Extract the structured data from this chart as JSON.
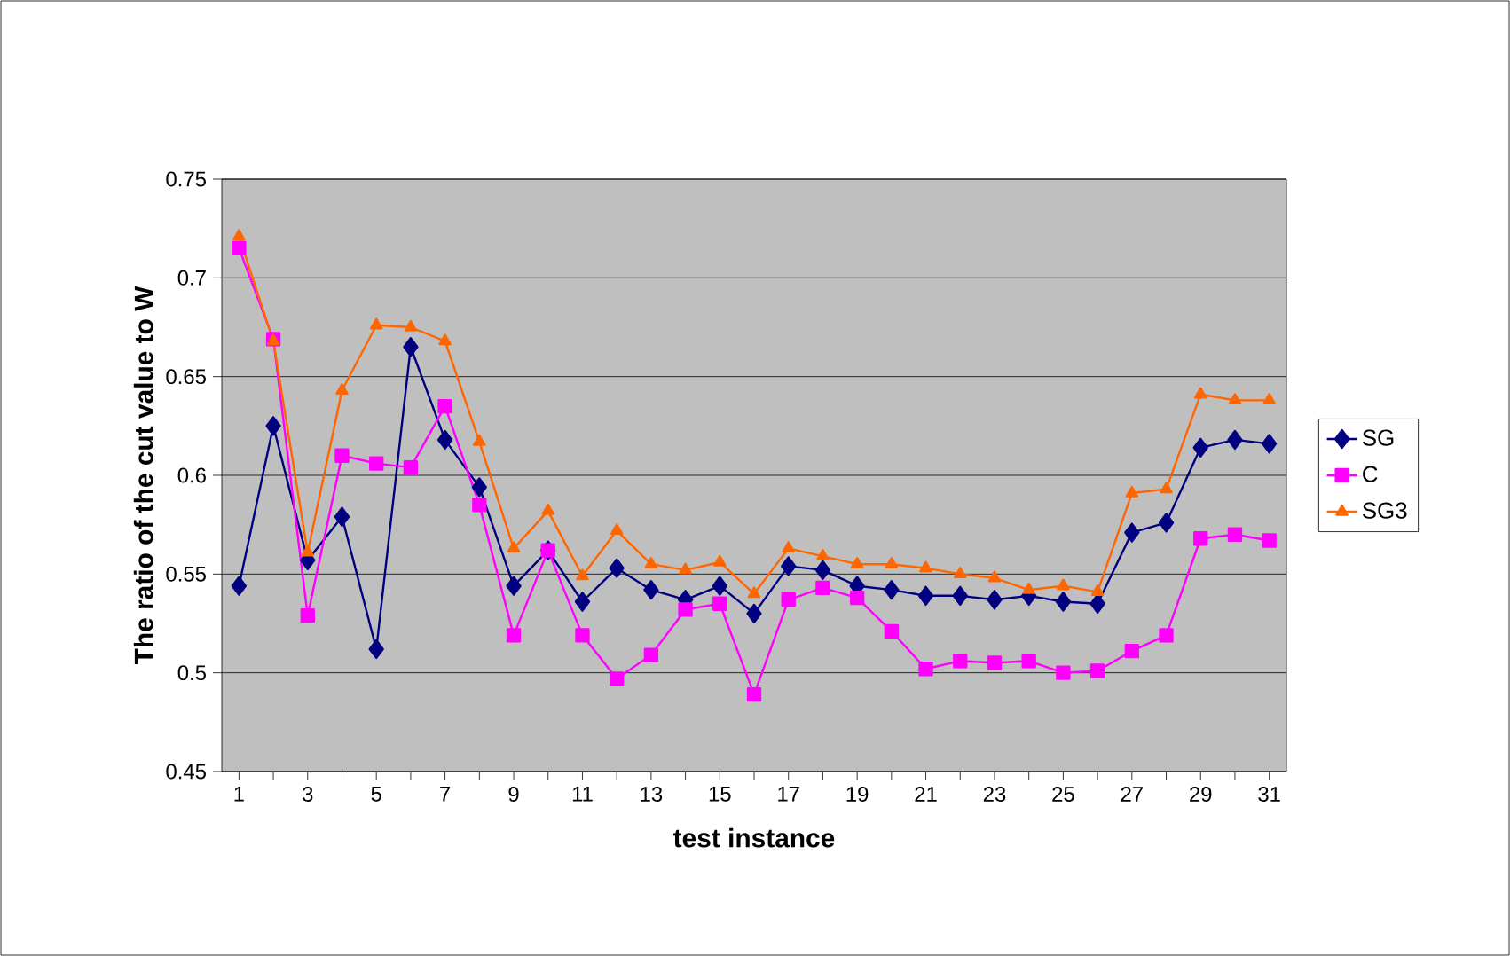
{
  "chart_data": {
    "type": "line",
    "xlabel": "test instance",
    "ylabel": "The ratio of the cut value to W",
    "categories": [
      "1",
      null,
      "3",
      null,
      "5",
      null,
      "7",
      null,
      "9",
      null,
      "11",
      null,
      "13",
      null,
      "15",
      null,
      "17",
      null,
      "19",
      null,
      "21",
      null,
      "23",
      null,
      "25",
      null,
      "27",
      null,
      "29",
      null,
      "31"
    ],
    "series": [
      {
        "name": "SG",
        "color": "#000080",
        "marker": "diamond",
        "values": [
          0.544,
          0.625,
          0.557,
          0.579,
          0.512,
          0.665,
          0.618,
          0.594,
          0.544,
          0.562,
          0.536,
          0.553,
          0.542,
          0.537,
          0.544,
          0.53,
          0.554,
          0.552,
          0.544,
          0.542,
          0.539,
          0.539,
          0.537,
          0.539,
          0.536,
          0.535,
          0.571,
          0.576,
          0.614,
          0.618,
          0.616
        ]
      },
      {
        "name": "C",
        "color": "#ff00ff",
        "marker": "square",
        "values": [
          0.715,
          0.669,
          0.529,
          0.61,
          0.606,
          0.604,
          0.635,
          0.585,
          0.519,
          0.562,
          0.519,
          0.497,
          0.509,
          0.532,
          0.535,
          0.489,
          0.537,
          0.543,
          0.538,
          0.521,
          0.502,
          0.506,
          0.505,
          0.506,
          0.5,
          0.501,
          0.511,
          0.519,
          0.568,
          0.57,
          0.567
        ]
      },
      {
        "name": "SG3",
        "color": "#ff6600",
        "marker": "triangle",
        "values": [
          0.721,
          0.668,
          0.561,
          0.643,
          0.676,
          0.675,
          0.668,
          0.617,
          0.563,
          0.582,
          0.549,
          0.572,
          0.555,
          0.552,
          0.556,
          0.54,
          0.563,
          0.559,
          0.555,
          0.555,
          0.553,
          0.55,
          0.548,
          0.542,
          0.544,
          0.541,
          0.591,
          0.593,
          0.641,
          0.638,
          0.638
        ]
      }
    ],
    "ylim": [
      0.45,
      0.75
    ],
    "yticks": [
      0.45,
      0.5,
      0.55,
      0.6,
      0.65,
      0.7,
      0.75
    ],
    "grid": "y",
    "legend": "right",
    "line_style": "solid"
  }
}
